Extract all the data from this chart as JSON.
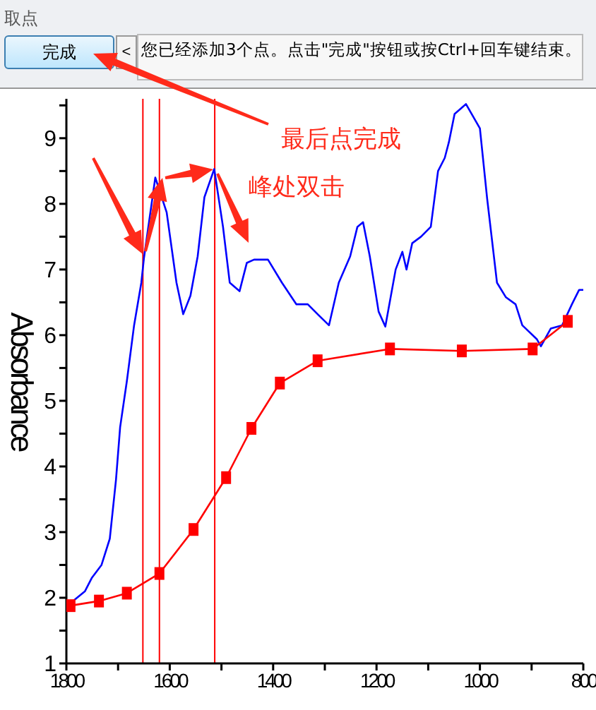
{
  "chart_data": {
    "type": "line",
    "ylabel": "Absorbance",
    "annotations": [
      "取点",
      "完成",
      "<",
      "您已经添加3个点。点击\"完成\"按钮或按Ctrl+回车键结束。",
      "最后点完成",
      "峰处双击"
    ],
    "xlim": [
      1800,
      800
    ],
    "xticks": [
      1800,
      {
        "value": 1700,
        "label": null
      },
      1600,
      {
        "value": 1500,
        "label": null
      },
      1400,
      {
        "value": 1300,
        "label": null
      },
      1200,
      {
        "value": 1100,
        "label": null
      },
      1000,
      {
        "value": 900,
        "label": null
      },
      800
    ],
    "ylim": [
      1,
      9.6
    ],
    "yticks": [
      1,
      {
        "value": 1.5,
        "label": null
      },
      2,
      {
        "value": 2.5,
        "label": null
      },
      3,
      {
        "value": 3.5,
        "label": null
      },
      4,
      {
        "value": 4.5,
        "label": null
      },
      5,
      {
        "value": 5.5,
        "label": null
      },
      6,
      {
        "value": 6.5,
        "label": null
      },
      7,
      {
        "value": 7.5,
        "label": null
      },
      8,
      {
        "value": 8.5,
        "label": null
      },
      9,
      {
        "value": 9.5,
        "label": null
      }
    ],
    "grid": false,
    "ref_lines": [
      {
        "axis": "x",
        "value": 1652,
        "color": "#ff0000"
      },
      {
        "axis": "x",
        "value": 1620,
        "color": "#ff0000"
      },
      {
        "axis": "x",
        "value": 1513,
        "color": "#ff0000"
      }
    ],
    "series": [
      {
        "color": "#0000ff",
        "marker": "none",
        "x": [
          1792,
          1764,
          1751,
          1732,
          1716,
          1704,
          1696,
          1683,
          1669,
          1655,
          1650,
          1628,
          1606,
          1587,
          1574,
          1560,
          1546,
          1533,
          1514,
          1497,
          1484,
          1465,
          1451,
          1437,
          1410,
          1383,
          1355,
          1333,
          1314,
          1292,
          1273,
          1251,
          1237,
          1226,
          1213,
          1196,
          1183,
          1163,
          1150,
          1142,
          1131,
          1114,
          1095,
          1081,
          1068,
          1060,
          1049,
          1027,
          1000,
          986,
          967,
          950,
          931,
          918,
          890,
          882,
          863,
          841,
          822,
          808,
          800
        ],
        "values": [
          1.92,
          2.1,
          2.3,
          2.5,
          2.9,
          3.8,
          4.6,
          5.3,
          6.15,
          6.8,
          7.17,
          8.4,
          7.87,
          6.8,
          6.32,
          6.6,
          7.2,
          8.1,
          8.53,
          7.65,
          6.8,
          6.67,
          7.1,
          7.15,
          7.15,
          6.8,
          6.47,
          6.47,
          6.32,
          6.15,
          6.8,
          7.2,
          7.65,
          7.72,
          7.2,
          6.36,
          6.13,
          7.0,
          7.27,
          7.0,
          7.4,
          7.5,
          7.65,
          8.5,
          8.7,
          8.94,
          9.37,
          9.52,
          9.15,
          8.08,
          6.8,
          6.58,
          6.47,
          6.15,
          5.94,
          5.83,
          6.1,
          6.15,
          6.47,
          6.69,
          6.69
        ]
      },
      {
        "color": "#ff0000",
        "marker": "square",
        "x": [
          1792,
          1737,
          1683,
          1620,
          1554,
          1491,
          1442,
          1387,
          1314,
          1174,
          1035,
          898,
          830
        ],
        "values": [
          1.88,
          1.95,
          2.07,
          2.37,
          3.04,
          3.83,
          4.58,
          5.27,
          5.61,
          5.79,
          5.76,
          5.79,
          6.21
        ]
      }
    ]
  }
}
